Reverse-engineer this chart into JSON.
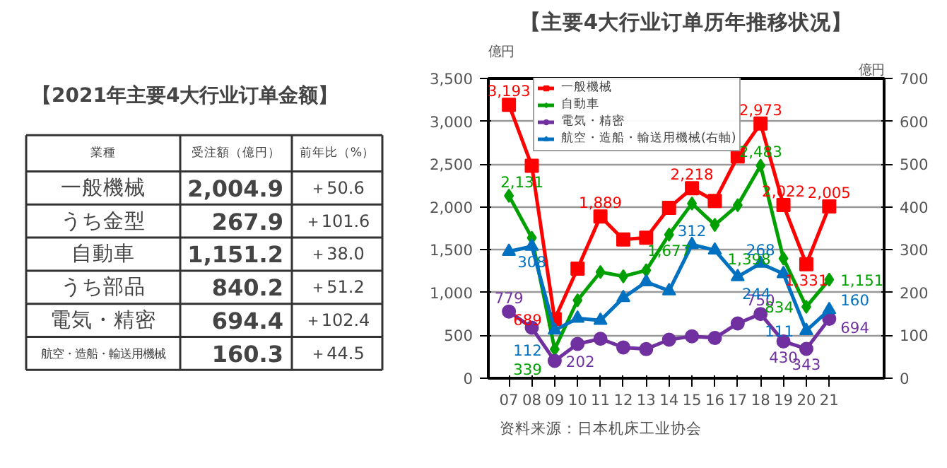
{
  "chart_data": [
    {
      "type": "other",
      "title": "【2021年主要4大行业订单金额】",
      "categories": [
        "業種",
        "受注額（億円）",
        "前年比（%）"
      ],
      "cell_labels": [
        [
          "一般機械",
          "2,004.9",
          "＋50.6"
        ],
        [
          "うち金型",
          "267.9",
          "＋101.6"
        ],
        [
          "自動車",
          "1,151.2",
          "＋38.0"
        ],
        [
          "うち部品",
          "840.2",
          "＋51.2"
        ],
        [
          "電気・精密",
          "694.4",
          "＋102.4"
        ],
        [
          "航空・造船・輸送用機械",
          "160.3",
          "＋44.5"
        ]
      ]
    },
    {
      "type": "line",
      "title": "【主要4大行业订单历年推移状况】",
      "ylabel": "億円",
      "y2label": "億円",
      "categories": [
        "07",
        "08",
        "09",
        "10",
        "11",
        "12",
        "13",
        "14",
        "15",
        "16",
        "17",
        "18",
        "19",
        "20",
        "21"
      ],
      "ylim": [
        0,
        3500
      ],
      "yticks": [
        {
          "value": 0,
          "label": "0"
        },
        {
          "value": 500,
          "label": "500"
        },
        {
          "value": 1000,
          "label": "1,000"
        },
        {
          "value": 1500,
          "label": "1,500"
        },
        {
          "value": 2000,
          "label": "2,000"
        },
        {
          "value": 2500,
          "label": "2,500"
        },
        {
          "value": 3000,
          "label": "3,000"
        },
        {
          "value": 3500,
          "label": "3,500"
        }
      ],
      "y2lim": [
        0,
        700
      ],
      "y2ticks": [
        0,
        100,
        200,
        300,
        400,
        500,
        600,
        700
      ],
      "grid": "y",
      "legend": "top",
      "series": [
        {
          "name": "一般機械",
          "color": "#ff0000",
          "marker": "square",
          "values": [
            3193,
            2480,
            689,
            1280,
            1889,
            1620,
            1640,
            1990,
            2218,
            2070,
            2590,
            2973,
            2022,
            1331,
            2005
          ],
          "value_labels": [
            "3,193",
            null,
            "689",
            null,
            "1,889",
            null,
            null,
            null,
            "2,218",
            null,
            null,
            "2,973",
            "2,022",
            "1,331",
            "2,005"
          ]
        },
        {
          "name": "自動車",
          "color": "#00a000",
          "marker": "diamond",
          "values": [
            2131,
            1640,
            339,
            910,
            1240,
            1190,
            1260,
            1677,
            2040,
            1790,
            2020,
            2483,
            1398,
            834,
            1151
          ],
          "value_labels": [
            "2,131",
            null,
            "339",
            null,
            null,
            null,
            null,
            "1,677",
            null,
            null,
            null,
            "2,483",
            "1,398",
            "834",
            "1,151"
          ]
        },
        {
          "name": "電気・精密",
          "color": "#7030a0",
          "marker": "circle",
          "values": [
            779,
            590,
            202,
            400,
            460,
            360,
            340,
            450,
            490,
            470,
            640,
            750,
            430,
            343,
            694
          ],
          "value_labels": [
            "779",
            null,
            "202",
            null,
            null,
            null,
            null,
            null,
            null,
            null,
            null,
            "750",
            "430",
            "343",
            "694"
          ]
        },
        {
          "name": "航空・造船・輸送用機械(右軸)",
          "color": "#0070c0",
          "marker": "triangle",
          "axis": "y2",
          "values": [
            296,
            308,
            112,
            140,
            135,
            188,
            225,
            204,
            312,
            299,
            237,
            268,
            244,
            111,
            160
          ],
          "value_labels": [
            null,
            "308",
            "112",
            null,
            null,
            null,
            null,
            null,
            "312",
            null,
            null,
            "268",
            "244",
            "111",
            "160"
          ]
        }
      ],
      "annotations": [
        "资料来源：日本机床工业协会"
      ]
    }
  ]
}
